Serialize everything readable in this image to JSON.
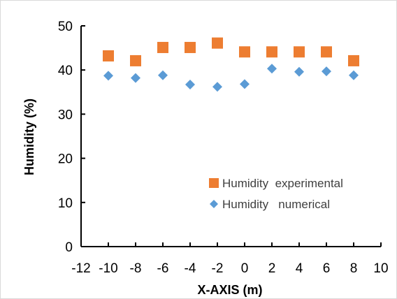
{
  "chart_data": {
    "type": "scatter",
    "xlabel": "X-AXIS (m)",
    "ylabel": "Humidity (%)",
    "xlim": [
      -12,
      10
    ],
    "ylim": [
      0,
      50
    ],
    "xticks": [
      -12,
      -10,
      -8,
      -6,
      -4,
      -2,
      0,
      2,
      4,
      6,
      8,
      10
    ],
    "yticks": [
      0,
      10,
      20,
      30,
      40,
      50
    ],
    "grid": false,
    "legend_position": "bottom-right",
    "series": [
      {
        "name": "Humidity  experimental",
        "marker": "square",
        "color": "#ED7D31",
        "x": [
          -10,
          -8,
          -6,
          -4,
          -2,
          0,
          2,
          4,
          6,
          8
        ],
        "y": [
          43.2,
          42.1,
          45.1,
          45.1,
          46.1,
          44.1,
          44.1,
          44.1,
          44.1,
          42.1
        ]
      },
      {
        "name": "Humidity   numerical",
        "marker": "diamond",
        "color": "#5B9BD5",
        "x": [
          -10,
          -8,
          -6,
          -4,
          -2,
          0,
          2,
          4,
          6,
          8
        ],
        "y": [
          38.7,
          38.2,
          38.8,
          36.7,
          36.2,
          36.8,
          40.3,
          39.6,
          39.7,
          38.8
        ]
      }
    ]
  }
}
